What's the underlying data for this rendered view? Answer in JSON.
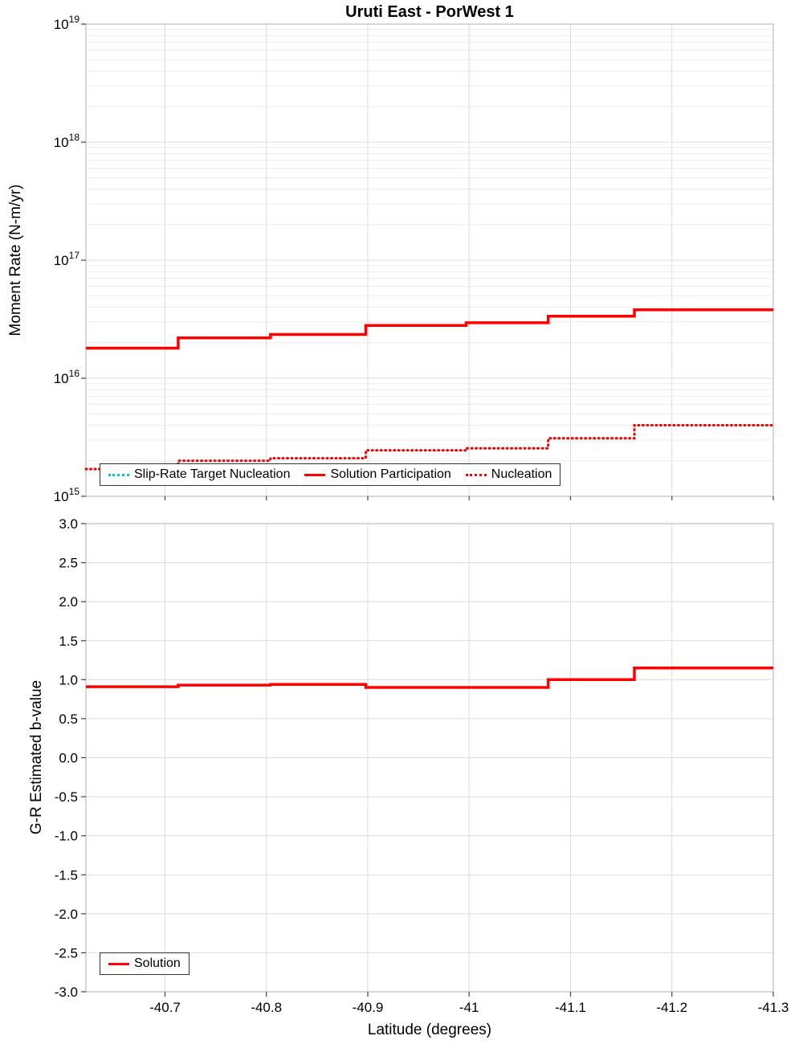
{
  "title": "Uruti East - PorWest 1",
  "xlabel": "Latitude (degrees)",
  "colors": {
    "red": "#FF0000",
    "cyan": "#00C8C8",
    "grid_major": "#dcdcdc",
    "grid_minor": "#ececec",
    "frame": "#b0b0b0",
    "tick": "#444444"
  },
  "legends": {
    "top": [
      {
        "label": "Slip-Rate Target Nucleation",
        "color": "#00C8C8",
        "style": "dotted"
      },
      {
        "label": "Solution Participation",
        "color": "#FF0000",
        "style": "solid"
      },
      {
        "label": "Nucleation",
        "color": "#FF0000",
        "style": "dotted"
      }
    ],
    "bottom": [
      {
        "label": "Solution",
        "color": "#FF0000",
        "style": "solid"
      }
    ]
  },
  "chart_data": [
    {
      "type": "line",
      "panel": "top",
      "title": "Uruti East - PorWest 1",
      "ylabel": "Moment Rate (N-m/yr)",
      "y_scale": "log",
      "ylim_exp": [
        15,
        19
      ],
      "y_tick_exponents": [
        19,
        18,
        17,
        16,
        15
      ],
      "xlim": [
        -40.622,
        -41.3
      ],
      "x_tick_values": [
        -40.7,
        -40.8,
        -40.9,
        -41,
        -41.1,
        -41.2,
        -41.3
      ],
      "x_tick_labels": [
        "-40.7",
        "-40.8",
        "-40.9",
        "-41",
        "-41.1",
        "-41.2",
        "-41.3"
      ],
      "x_edges": [
        -40.622,
        -40.713,
        -40.804,
        -40.898,
        -40.997,
        -41.078,
        -41.163,
        -41.3
      ],
      "grid": true,
      "legend_position": "bottom-left-inside",
      "series": [
        {
          "name": "Slip-Rate Target Nucleation",
          "color": "#00C8C8",
          "style": "dotted",
          "values": [
            1700000000000000.0,
            2000000000000000.0,
            2100000000000000.0,
            2450000000000000.0,
            2550000000000000.0,
            3100000000000000.0,
            4000000000000000.0
          ]
        },
        {
          "name": "Solution Participation",
          "color": "#FF0000",
          "style": "solid",
          "values": [
            1.8e+16,
            2.2e+16,
            2.35e+16,
            2.8e+16,
            2.95e+16,
            3.35e+16,
            3.8e+16
          ]
        },
        {
          "name": "Nucleation",
          "color": "#FF0000",
          "style": "dotted",
          "values": [
            1700000000000000.0,
            2000000000000000.0,
            2100000000000000.0,
            2450000000000000.0,
            2550000000000000.0,
            3100000000000000.0,
            4000000000000000.0
          ]
        }
      ]
    },
    {
      "type": "line",
      "panel": "bottom",
      "ylabel": "G-R Estimated b-value",
      "xlabel": "Latitude (degrees)",
      "ylim": [
        -3,
        3
      ],
      "y_tick_labels": [
        "3.0",
        "2.5",
        "2.0",
        "1.5",
        "1.0",
        "0.5",
        "0.0",
        "-0.5",
        "-1.0",
        "-1.5",
        "-2.0",
        "-2.5",
        "-3.0"
      ],
      "xlim": [
        -40.622,
        -41.3
      ],
      "x_tick_values": [
        -40.7,
        -40.8,
        -40.9,
        -41,
        -41.1,
        -41.2,
        -41.3
      ],
      "x_tick_labels": [
        "-40.7",
        "-40.8",
        "-40.9",
        "-41",
        "-41.1",
        "-41.2",
        "-41.3"
      ],
      "x_edges": [
        -40.622,
        -40.713,
        -40.804,
        -40.898,
        -40.997,
        -41.078,
        -41.163,
        -41.3
      ],
      "grid": true,
      "legend_position": "bottom-left-inside",
      "series": [
        {
          "name": "Solution",
          "color": "#FF0000",
          "style": "solid",
          "values": [
            0.91,
            0.93,
            0.94,
            0.9,
            0.9,
            1.0,
            1.15
          ]
        }
      ]
    }
  ]
}
